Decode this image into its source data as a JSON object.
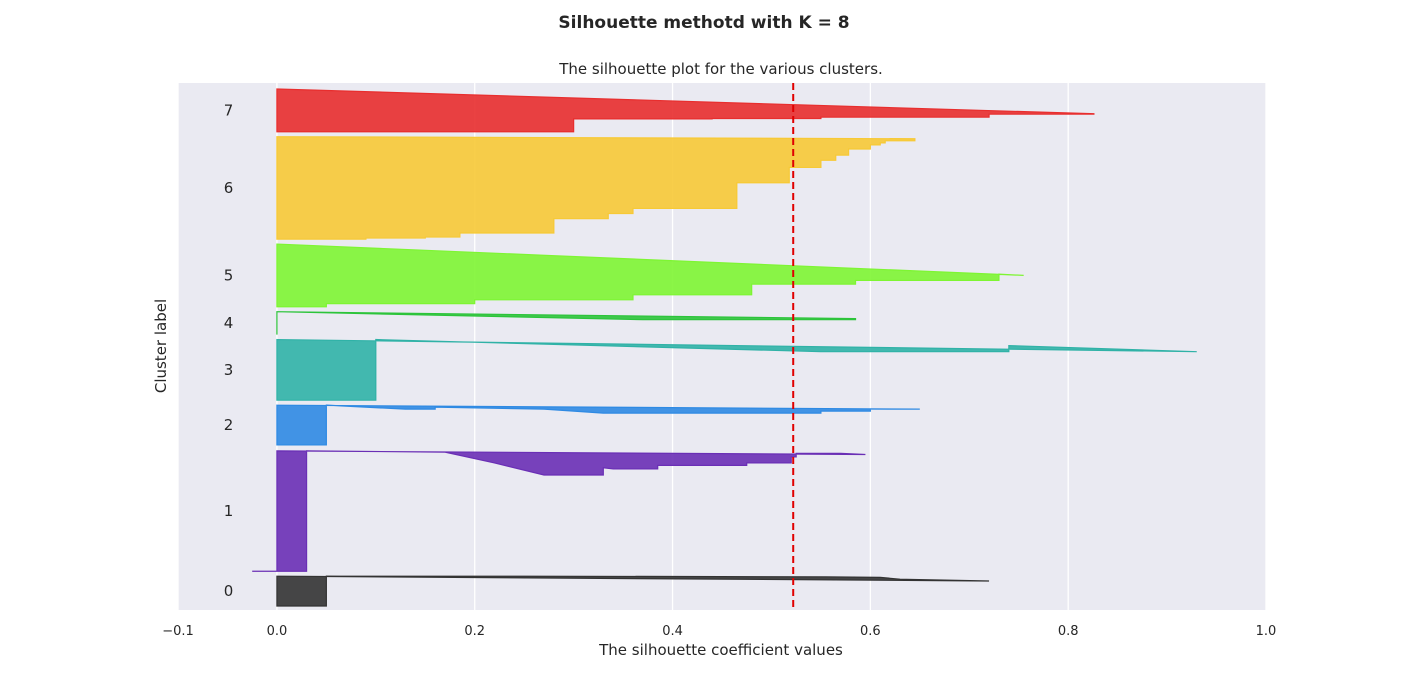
{
  "chart_data": {
    "type": "area",
    "suptitle": "Silhouette  methotd with K = 8",
    "title": "The silhouette plot for the various clusters.",
    "xlabel": "The silhouette coefficient values",
    "ylabel": "Cluster label",
    "xlim": [
      -0.1,
      1.0
    ],
    "xticks": [
      "−0.1",
      "0.0",
      "0.2",
      "0.4",
      "0.6",
      "0.8",
      "1.0"
    ],
    "xtick_values": [
      -0.1,
      0.0,
      0.2,
      0.4,
      0.6,
      0.8,
      1.0
    ],
    "ylim": [
      0,
      530
    ],
    "grid": true,
    "background": "#eaeaf2",
    "average_line": {
      "value": 0.522,
      "color": "#e00000",
      "style": "dashed"
    },
    "clusters": [
      {
        "label": "0",
        "color": "#333333",
        "y_lower": 4,
        "y_upper": 34,
        "steps": [
          [
            0.72,
            0.16
          ],
          [
            0.63,
            0.1
          ],
          [
            0.61,
            0.04
          ],
          [
            0.555,
            0.02
          ],
          [
            0.25,
            0.0
          ],
          [
            0.05,
            0.0
          ]
        ]
      },
      {
        "label": "1",
        "color": "#6a2fb5",
        "y_lower": 39,
        "y_upper": 160,
        "steps": [
          [
            0.595,
            0.03
          ],
          [
            0.57,
            0.02
          ],
          [
            0.54,
            0.02
          ],
          [
            0.525,
            0.02
          ],
          [
            0.52,
            0.05
          ],
          [
            0.48,
            0.1
          ],
          [
            0.475,
            0.1
          ],
          [
            0.385,
            0.12
          ],
          [
            0.34,
            0.15
          ],
          [
            0.33,
            0.14
          ],
          [
            0.27,
            0.2
          ],
          [
            0.22,
            0.1
          ],
          [
            0.17,
            0.01
          ],
          [
            0.03,
            0.0
          ]
        ],
        "min": -0.025
      },
      {
        "label": "2",
        "color": "#2f8ae3",
        "y_lower": 166,
        "y_upper": 206,
        "steps": [
          [
            0.65,
            0.1
          ],
          [
            0.6,
            0.1
          ],
          [
            0.55,
            0.15
          ],
          [
            0.33,
            0.2
          ],
          [
            0.27,
            0.1
          ],
          [
            0.16,
            0.05
          ],
          [
            0.13,
            0.1
          ],
          [
            0.05,
            0.0
          ]
        ]
      },
      {
        "label": "3",
        "color": "#30b2a7",
        "y_lower": 211,
        "y_upper": 272,
        "steps": [
          [
            0.93,
            0.2
          ],
          [
            0.74,
            0.1
          ],
          [
            0.72,
            0.2
          ],
          [
            0.55,
            0.2
          ],
          [
            0.1,
            0.0
          ]
        ]
      },
      {
        "label": "4",
        "color": "#2cc43a",
        "y_lower": 277,
        "y_upper": 300,
        "steps": [
          [
            0.585,
            0.3
          ],
          [
            0.45,
            0.35
          ],
          [
            0.37,
            0.35
          ],
          [
            0.0,
            0.0
          ]
        ]
      },
      {
        "label": "5",
        "color": "#7ef533",
        "y_lower": 305,
        "y_upper": 368,
        "steps": [
          [
            0.755,
            0.5
          ],
          [
            0.73,
            0.48
          ],
          [
            0.585,
            0.58
          ],
          [
            0.48,
            0.64
          ],
          [
            0.36,
            0.81
          ],
          [
            0.2,
            0.89
          ],
          [
            0.05,
            0.95
          ]
        ]
      },
      {
        "label": "6",
        "color": "#f7c936",
        "y_lower": 373,
        "y_upper": 476,
        "steps": [
          [
            0.645,
            0.02
          ],
          [
            0.615,
            0.04
          ],
          [
            0.61,
            0.06
          ],
          [
            0.6,
            0.08
          ],
          [
            0.578,
            0.12
          ],
          [
            0.565,
            0.18
          ],
          [
            0.55,
            0.23
          ],
          [
            0.518,
            0.3
          ],
          [
            0.465,
            0.45
          ],
          [
            0.36,
            0.7
          ],
          [
            0.335,
            0.75
          ],
          [
            0.28,
            0.8
          ],
          [
            0.185,
            0.94
          ],
          [
            0.15,
            0.98
          ],
          [
            0.09,
            0.99
          ]
        ]
      },
      {
        "label": "7",
        "color": "#e82e2e",
        "y_lower": 481,
        "y_upper": 524,
        "steps": [
          [
            0.826,
            0.58
          ],
          [
            0.72,
            0.59
          ],
          [
            0.55,
            0.66
          ],
          [
            0.44,
            0.69
          ],
          [
            0.3,
            0.7
          ]
        ]
      }
    ]
  }
}
